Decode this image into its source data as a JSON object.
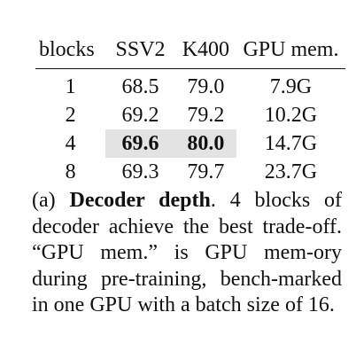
{
  "table": {
    "headers": [
      "blocks",
      "SSV2",
      "K400",
      "GPU mem."
    ],
    "rows": [
      {
        "blocks": "1",
        "ssv2": "68.5",
        "k400": "79.0",
        "gpu": "7.9G"
      },
      {
        "blocks": "2",
        "ssv2": "69.2",
        "k400": "79.2",
        "gpu": "10.2G"
      },
      {
        "blocks": "4",
        "ssv2": "69.6",
        "k400": "80.0",
        "gpu": "14.7G"
      },
      {
        "blocks": "8",
        "ssv2": "69.3",
        "k400": "79.7",
        "gpu": "23.7G"
      }
    ],
    "highlight_color": "#e3e3e3"
  },
  "caption": {
    "label": "(a)",
    "bold_title": "Decoder depth",
    "text_part1": ". 4 blocks of decoder achieve the best trade-off. “GPU mem.” is GPU mem",
    "text_part2": "ory during pre-training, bench",
    "text_part3": "marked in one GPU with a batch size of 16."
  }
}
